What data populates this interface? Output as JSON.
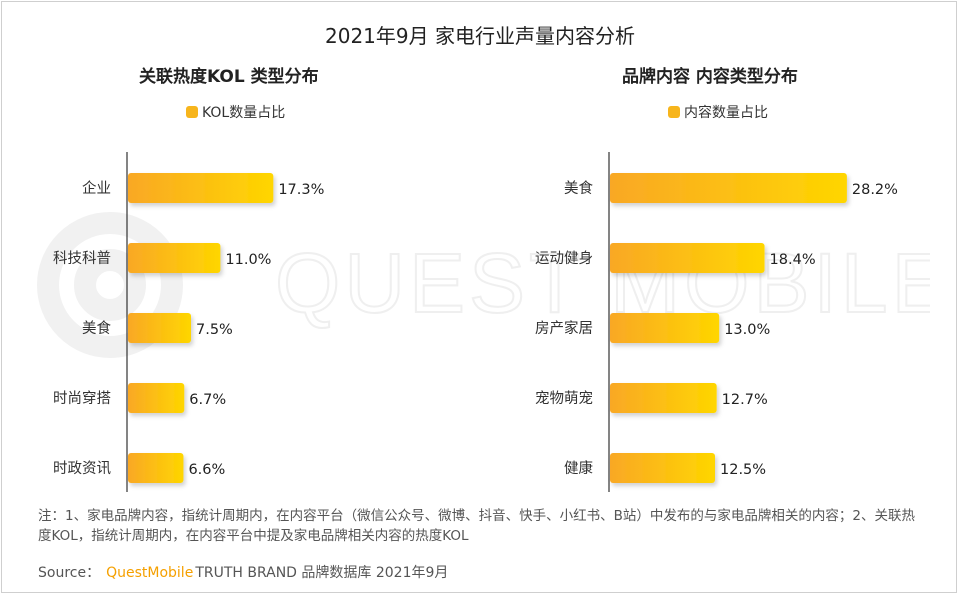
{
  "title": "2021年9月 家电行业声量内容分析",
  "colors": {
    "bar_start": "#f9a825",
    "bar_end": "#ffd600",
    "legend": "#f7b51c",
    "axis": "#333333",
    "brand": "#f5a000"
  },
  "chart_data": [
    {
      "type": "bar",
      "orientation": "horizontal",
      "title": "关联热度KOL 类型分布",
      "legend": "KOL数量占比",
      "categories": [
        "企业",
        "科技科普",
        "美食",
        "时尚穿搭",
        "时政资讯"
      ],
      "values": [
        17.3,
        11.0,
        7.5,
        6.7,
        6.6
      ],
      "value_labels": [
        "17.3%",
        "11.0%",
        "7.5%",
        "6.7%",
        "6.6%"
      ],
      "xlim": [
        0,
        30
      ],
      "grid": false
    },
    {
      "type": "bar",
      "orientation": "horizontal",
      "title": "品牌内容 内容类型分布",
      "legend": "内容数量占比",
      "categories": [
        "美食",
        "运动健身",
        "房产家居",
        "宠物萌宠",
        "健康"
      ],
      "values": [
        28.2,
        18.4,
        13.0,
        12.7,
        12.5
      ],
      "value_labels": [
        "28.2%",
        "18.4%",
        "13.0%",
        "12.7%",
        "12.5%"
      ],
      "xlim": [
        0,
        30
      ],
      "grid": false
    }
  ],
  "note": "注：1、家电品牌内容，指统计周期内，在内容平台（微信公众号、微博、抖音、快手、小红书、B站）中发布的与家电品牌相关的内容；2、关联热度KOL，指统计周期内，在内容平台中提及家电品牌相关内容的热度KOL",
  "source": {
    "label": "Source：",
    "brand": "QuestMobile",
    "rest": "TRUTH BRAND 品牌数据库 2021年9月"
  },
  "watermark": "QUEST MOBILE"
}
